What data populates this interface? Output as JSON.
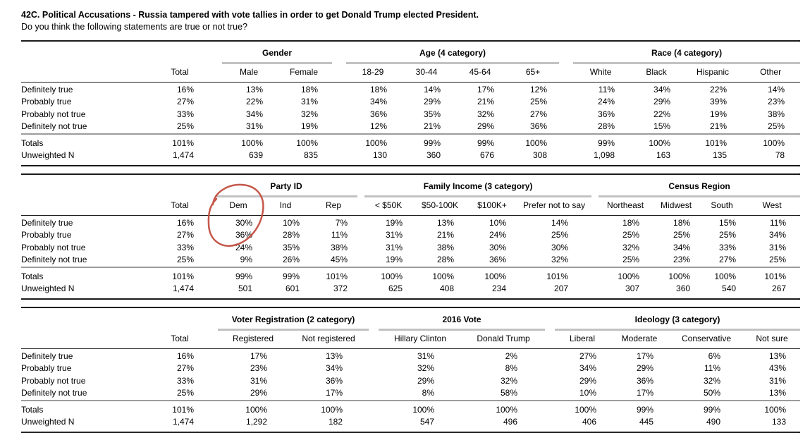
{
  "header": {
    "title": "42C. Political Accusations - Russia tampered with vote tallies in order to get Donald Trump elected President.",
    "subtitle": "Do you think the following statements are true or not true?"
  },
  "tables": [
    {
      "name": "gender-age-race",
      "groups": [
        {
          "label": "",
          "span": 1
        },
        {
          "label": "Gender",
          "span": 2
        },
        {
          "label": "Age (4 category)",
          "span": 4
        },
        {
          "label": "Race (4 category)",
          "span": 4
        }
      ],
      "columns": [
        "Total",
        "Male",
        "Female",
        "18-29",
        "30-44",
        "45-64",
        "65+",
        "White",
        "Black",
        "Hispanic",
        "Other"
      ],
      "rows": [
        {
          "label": "Definitely true",
          "values": [
            "16%",
            "13%",
            "18%",
            "18%",
            "14%",
            "17%",
            "12%",
            "11%",
            "34%",
            "22%",
            "14%"
          ]
        },
        {
          "label": "Probably true",
          "values": [
            "27%",
            "22%",
            "31%",
            "34%",
            "29%",
            "21%",
            "25%",
            "24%",
            "29%",
            "39%",
            "23%"
          ]
        },
        {
          "label": "Probably not true",
          "values": [
            "33%",
            "34%",
            "32%",
            "36%",
            "35%",
            "32%",
            "27%",
            "36%",
            "22%",
            "19%",
            "38%"
          ]
        },
        {
          "label": "Definitely not true",
          "values": [
            "25%",
            "31%",
            "19%",
            "12%",
            "21%",
            "29%",
            "36%",
            "28%",
            "15%",
            "21%",
            "25%"
          ]
        }
      ],
      "totals": [
        {
          "label": "Totals",
          "values": [
            "101%",
            "100%",
            "100%",
            "100%",
            "99%",
            "99%",
            "100%",
            "99%",
            "100%",
            "101%",
            "100%"
          ]
        },
        {
          "label": "Unweighted N",
          "values": [
            "1,474",
            "639",
            "835",
            "130",
            "360",
            "676",
            "308",
            "1,098",
            "163",
            "135",
            "78"
          ]
        }
      ]
    },
    {
      "name": "party-income-region",
      "groups": [
        {
          "label": "",
          "span": 1
        },
        {
          "label": "Party ID",
          "span": 3
        },
        {
          "label": "Family Income (3 category)",
          "span": 4
        },
        {
          "label": "Census Region",
          "span": 4
        }
      ],
      "columns": [
        "Total",
        "Dem",
        "Ind",
        "Rep",
        "< $50K",
        "$50-100K",
        "$100K+",
        "Prefer not to say",
        "Northeast",
        "Midwest",
        "South",
        "West"
      ],
      "rows": [
        {
          "label": "Definitely true",
          "values": [
            "16%",
            "30%",
            "10%",
            "7%",
            "19%",
            "13%",
            "10%",
            "14%",
            "18%",
            "18%",
            "15%",
            "11%"
          ]
        },
        {
          "label": "Probably true",
          "values": [
            "27%",
            "36%",
            "28%",
            "11%",
            "31%",
            "21%",
            "24%",
            "25%",
            "25%",
            "25%",
            "25%",
            "34%"
          ]
        },
        {
          "label": "Probably not true",
          "values": [
            "33%",
            "24%",
            "35%",
            "38%",
            "31%",
            "38%",
            "30%",
            "30%",
            "32%",
            "34%",
            "33%",
            "31%"
          ]
        },
        {
          "label": "Definitely not true",
          "values": [
            "25%",
            "9%",
            "26%",
            "45%",
            "19%",
            "28%",
            "36%",
            "32%",
            "25%",
            "23%",
            "27%",
            "25%"
          ]
        }
      ],
      "totals": [
        {
          "label": "Totals",
          "values": [
            "101%",
            "99%",
            "99%",
            "101%",
            "100%",
            "100%",
            "100%",
            "101%",
            "100%",
            "100%",
            "100%",
            "101%"
          ]
        },
        {
          "label": "Unweighted N",
          "values": [
            "1,474",
            "501",
            "601",
            "372",
            "625",
            "408",
            "234",
            "207",
            "307",
            "360",
            "540",
            "267"
          ]
        }
      ]
    },
    {
      "name": "registration-vote-ideology",
      "groups": [
        {
          "label": "",
          "span": 1
        },
        {
          "label": "Voter Registration (2 category)",
          "span": 2
        },
        {
          "label": "2016 Vote",
          "span": 2
        },
        {
          "label": "Ideology (3 category)",
          "span": 4
        }
      ],
      "columns": [
        "Total",
        "Registered",
        "Not registered",
        "Hillary Clinton",
        "Donald Trump",
        "Liberal",
        "Moderate",
        "Conservative",
        "Not sure"
      ],
      "rows": [
        {
          "label": "Definitely true",
          "values": [
            "16%",
            "17%",
            "13%",
            "31%",
            "2%",
            "27%",
            "17%",
            "6%",
            "13%"
          ]
        },
        {
          "label": "Probably true",
          "values": [
            "27%",
            "23%",
            "34%",
            "32%",
            "8%",
            "34%",
            "29%",
            "11%",
            "43%"
          ]
        },
        {
          "label": "Probably not true",
          "values": [
            "33%",
            "31%",
            "36%",
            "29%",
            "32%",
            "29%",
            "36%",
            "32%",
            "31%"
          ]
        },
        {
          "label": "Definitely not true",
          "values": [
            "25%",
            "29%",
            "17%",
            "8%",
            "58%",
            "10%",
            "17%",
            "50%",
            "13%"
          ]
        }
      ],
      "totals": [
        {
          "label": "Totals",
          "values": [
            "101%",
            "100%",
            "100%",
            "100%",
            "100%",
            "100%",
            "99%",
            "99%",
            "100%"
          ]
        },
        {
          "label": "Unweighted N",
          "values": [
            "1,474",
            "1,292",
            "182",
            "547",
            "496",
            "406",
            "445",
            "490",
            "133"
          ]
        }
      ]
    }
  ],
  "annotation": {
    "shape": "hand-drawn circle",
    "color": "#c14a3b",
    "circled_values": [
      "Dem",
      "30%",
      "36%"
    ],
    "location": "Party ID table, Dem column"
  }
}
